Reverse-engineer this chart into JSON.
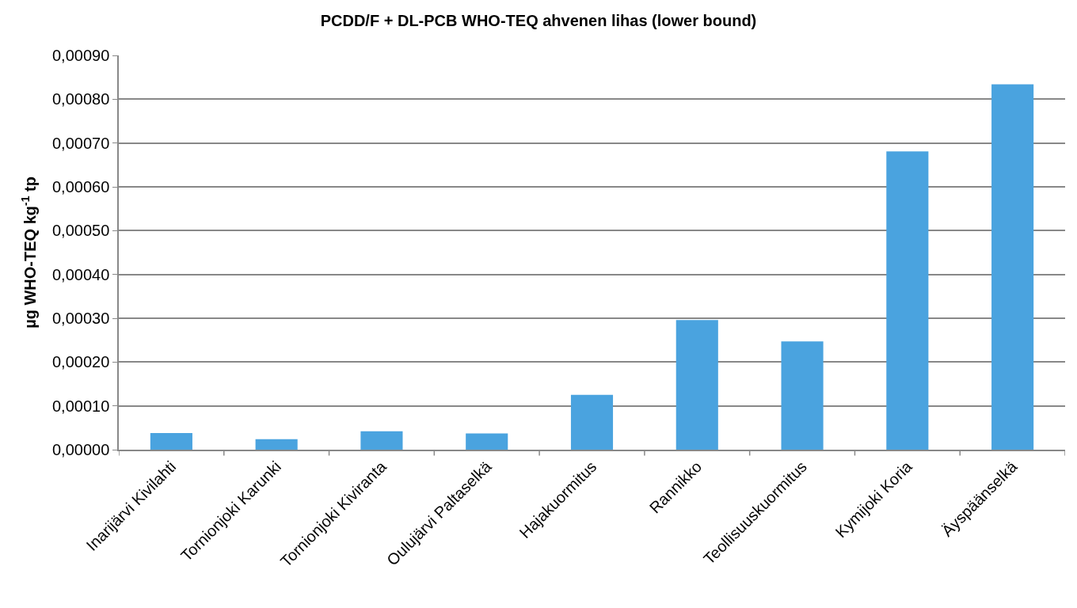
{
  "chart_data": {
    "type": "bar",
    "title": "PCDD/F + DL-PCB WHO-TEQ ahvenen lihas (lower bound)",
    "ylabel": "µg WHO-TEQ kg$^{-1}$ tp",
    "categories": [
      "Inarijärvi Kivilahti",
      "Tornionjoki Karunki",
      "Tornionjoki Kiviranta",
      "Oulujärvi Paltaselkä",
      "Hajakuormitus",
      "Rannikko",
      "Teollisuuskuormitus",
      "Kymijoki Koria",
      "Äyspäänselkä"
    ],
    "values": [
      3.8e-05,
      2.4e-05,
      4.2e-05,
      3.7e-05,
      0.000125,
      0.000296,
      0.000247,
      0.000681,
      0.000834
    ],
    "color": "#4aa3df",
    "ylim": [
      0,
      0.0009
    ],
    "yticks": [
      {
        "value": 0,
        "label": "0,00000"
      },
      {
        "value": 0.0001,
        "label": "0,00010"
      },
      {
        "value": 0.0002,
        "label": "0,00020"
      },
      {
        "value": 0.0003,
        "label": "0,00030"
      },
      {
        "value": 0.0004,
        "label": "0,00040"
      },
      {
        "value": 0.0005,
        "label": "0,00050"
      },
      {
        "value": 0.0006,
        "label": "0,00060"
      },
      {
        "value": 0.0007,
        "label": "0,00070"
      },
      {
        "value": 0.0008,
        "label": "0,00080"
      },
      {
        "value": 0.0009,
        "label": "0,00090"
      }
    ],
    "grid": "y"
  }
}
